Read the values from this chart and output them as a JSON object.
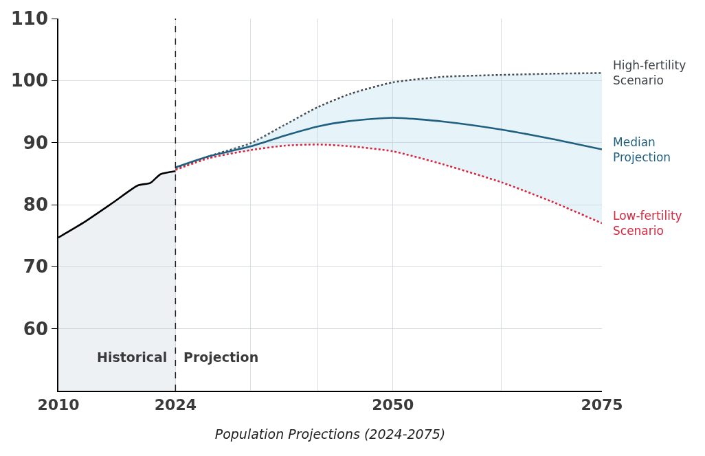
{
  "chart_data": {
    "type": "line",
    "xlabel": "Population Projections (2024-2075)",
    "xlim": [
      2010,
      2075
    ],
    "xticks": [
      2010,
      2024,
      {
        "value": 2033,
        "label": null
      },
      {
        "value": 2041,
        "label": null
      },
      2050,
      {
        "value": 2063,
        "label": null
      },
      2075
    ],
    "ylim": [
      50,
      110
    ],
    "yticks": [
      60,
      70,
      80,
      90,
      100,
      110
    ],
    "grid": true,
    "legend": false,
    "series": [
      {
        "type": "area",
        "color": "#000000",
        "line_style": "solid",
        "x": [
          2010,
          2013,
          2016.5,
          2019.5,
          2021,
          2022.2,
          2024
        ],
        "values": [
          74.7,
          77.1,
          80.3,
          83.1,
          83.5,
          84.9,
          85.4
        ]
      },
      {
        "name": "High-fertility Scenario",
        "color": "#3a3f44",
        "line_style": "dotted",
        "x": [
          2024,
          2028,
          2033,
          2037,
          2041,
          2045,
          2050,
          2056,
          2063,
          2069,
          2075
        ],
        "values": [
          85.8,
          87.8,
          89.9,
          92.8,
          95.7,
          97.9,
          99.7,
          100.6,
          100.9,
          101.1,
          101.2
        ]
      },
      {
        "name": "Median Projection",
        "color": "#1f5f7f",
        "line_style": "solid",
        "x": [
          2024,
          2028,
          2033,
          2037,
          2041,
          2045,
          2050,
          2056,
          2063,
          2069,
          2075
        ],
        "values": [
          86.0,
          87.8,
          89.4,
          91.1,
          92.6,
          93.5,
          94.0,
          93.4,
          92.1,
          90.6,
          88.9
        ],
        "lower": [
          85.6,
          87.5,
          88.8,
          89.5,
          89.7,
          89.4,
          88.6,
          86.5,
          83.6,
          80.5,
          77.0
        ],
        "upper": [
          85.8,
          87.8,
          89.9,
          92.8,
          95.7,
          97.9,
          99.7,
          100.6,
          100.9,
          101.1,
          101.2
        ]
      },
      {
        "name": "Low-fertility Scenario",
        "color": "#d7263d",
        "line_style": "dotted",
        "x": [
          2024,
          2028,
          2033,
          2037,
          2041,
          2045,
          2050,
          2056,
          2063,
          2069,
          2075
        ],
        "values": [
          85.6,
          87.5,
          88.8,
          89.5,
          89.7,
          89.4,
          88.6,
          86.5,
          83.6,
          80.5,
          77.0
        ]
      }
    ],
    "ref_lines": [
      {
        "axis": "x",
        "value": 2024,
        "label": null,
        "color": "#222222",
        "line_style": "dashed"
      }
    ],
    "annotations": [
      "Historical",
      "Projection"
    ]
  }
}
